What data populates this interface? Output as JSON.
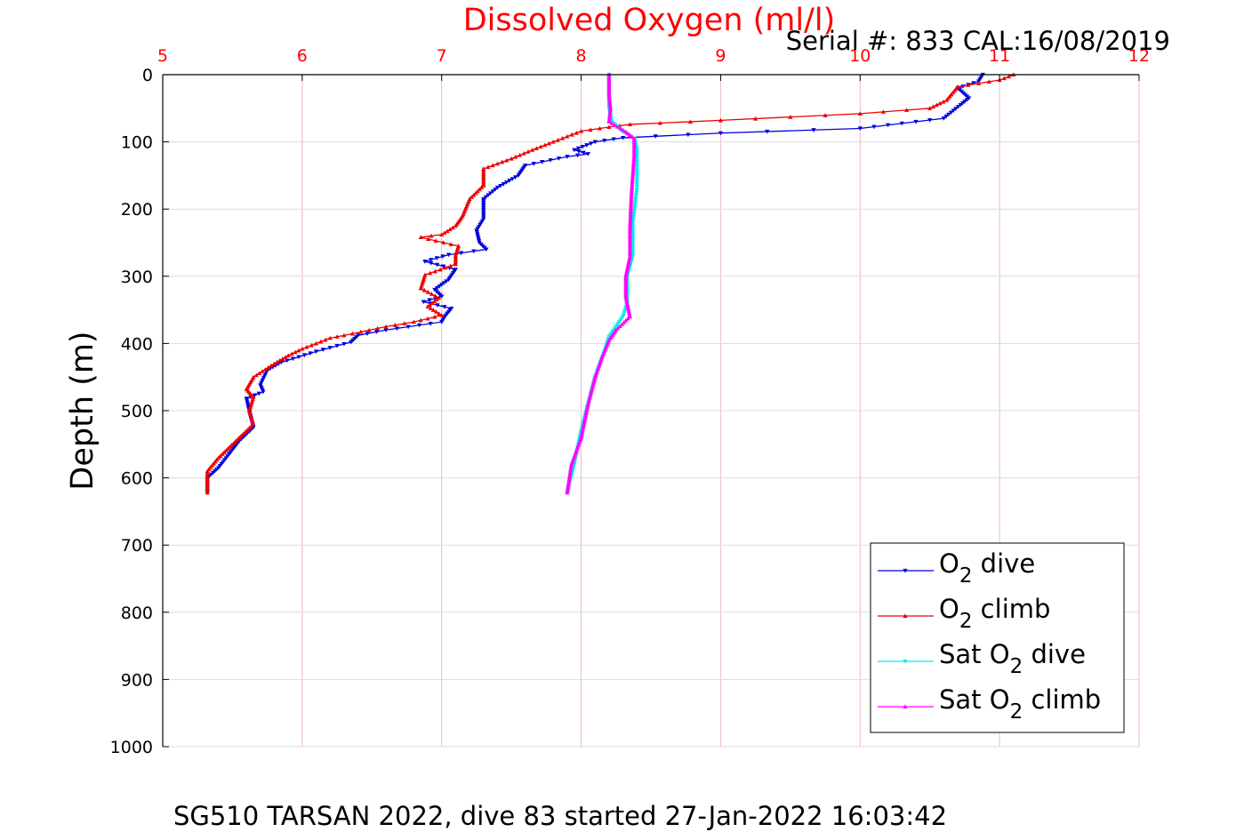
{
  "chart_data": {
    "type": "line",
    "title": "Dissolved Oxygen (ml/l)",
    "subtitle": "Serial #: 833  CAL:16/08/2019",
    "caption": "SG510 TARSAN 2022, dive 83 started 27-Jan-2022 16:03:42",
    "ylabel": "Depth (m)",
    "xlim": [
      5,
      12
    ],
    "ylim": [
      0,
      1000
    ],
    "y_reversed": true,
    "x_axis_position": "top",
    "xticks": [
      "5",
      "6",
      "7",
      "8",
      "9",
      "10",
      "11",
      "12"
    ],
    "yticks": [
      "0",
      "100",
      "200",
      "300",
      "400",
      "500",
      "600",
      "700",
      "800",
      "900",
      "1000"
    ],
    "grid": true,
    "legend_position": "lower-right",
    "colors": {
      "title": "#ff0000",
      "xtick": "#ff0000",
      "grid": "#f2b6c4",
      "axis": "#000000"
    },
    "series": [
      {
        "name": "O2 dive",
        "legend_main": "O",
        "legend_sub": "2",
        "legend_tail": " dive",
        "color": "#0000dd",
        "marker": "triangle-down",
        "points": [
          [
            10.88,
            0
          ],
          [
            10.85,
            10
          ],
          [
            10.7,
            20
          ],
          [
            10.78,
            35
          ],
          [
            10.72,
            45
          ],
          [
            10.6,
            65
          ],
          [
            10.0,
            80
          ],
          [
            9.0,
            87
          ],
          [
            8.3,
            94
          ],
          [
            8.1,
            100
          ],
          [
            7.95,
            112
          ],
          [
            8.05,
            118
          ],
          [
            7.9,
            122
          ],
          [
            7.6,
            135
          ],
          [
            7.55,
            150
          ],
          [
            7.4,
            168
          ],
          [
            7.3,
            185
          ],
          [
            7.3,
            215
          ],
          [
            7.25,
            232
          ],
          [
            7.27,
            250
          ],
          [
            7.32,
            260
          ],
          [
            7.05,
            268
          ],
          [
            6.88,
            278
          ],
          [
            7.1,
            290
          ],
          [
            7.05,
            305
          ],
          [
            6.95,
            320
          ],
          [
            7.0,
            330
          ],
          [
            6.87,
            338
          ],
          [
            7.07,
            348
          ],
          [
            7.03,
            358
          ],
          [
            7.0,
            368
          ],
          [
            6.6,
            380
          ],
          [
            6.4,
            388
          ],
          [
            6.35,
            398
          ],
          [
            6.1,
            412
          ],
          [
            5.85,
            428
          ],
          [
            5.75,
            440
          ],
          [
            5.7,
            462
          ],
          [
            5.72,
            472
          ],
          [
            5.6,
            482
          ],
          [
            5.62,
            500
          ],
          [
            5.65,
            525
          ],
          [
            5.55,
            545
          ],
          [
            5.4,
            585
          ],
          [
            5.32,
            600
          ],
          [
            5.32,
            622
          ]
        ]
      },
      {
        "name": "O2 climb",
        "legend_main": "O",
        "legend_sub": "2",
        "legend_tail": " climb",
        "color": "#ee0000",
        "marker": "triangle-up",
        "points": [
          [
            11.1,
            0
          ],
          [
            11.0,
            8
          ],
          [
            10.7,
            18
          ],
          [
            10.62,
            38
          ],
          [
            10.5,
            50
          ],
          [
            10.0,
            58
          ],
          [
            9.0,
            68
          ],
          [
            8.35,
            74
          ],
          [
            8.2,
            78
          ],
          [
            8.0,
            84
          ],
          [
            7.9,
            92
          ],
          [
            7.8,
            100
          ],
          [
            7.65,
            112
          ],
          [
            7.5,
            125
          ],
          [
            7.3,
            140
          ],
          [
            7.3,
            165
          ],
          [
            7.2,
            185
          ],
          [
            7.15,
            210
          ],
          [
            7.1,
            225
          ],
          [
            7.0,
            238
          ],
          [
            6.85,
            242
          ],
          [
            7.12,
            255
          ],
          [
            7.1,
            268
          ],
          [
            7.1,
            282
          ],
          [
            6.88,
            298
          ],
          [
            6.85,
            318
          ],
          [
            6.98,
            332
          ],
          [
            6.9,
            345
          ],
          [
            7.0,
            358
          ],
          [
            6.8,
            368
          ],
          [
            6.6,
            375
          ],
          [
            6.3,
            388
          ],
          [
            6.2,
            392
          ],
          [
            6.0,
            408
          ],
          [
            5.9,
            418
          ],
          [
            5.8,
            430
          ],
          [
            5.65,
            450
          ],
          [
            5.6,
            468
          ],
          [
            5.65,
            480
          ],
          [
            5.62,
            500
          ],
          [
            5.65,
            520
          ],
          [
            5.55,
            540
          ],
          [
            5.4,
            570
          ],
          [
            5.32,
            590
          ],
          [
            5.32,
            622
          ]
        ]
      },
      {
        "name": "Sat O2 dive",
        "legend_main": "Sat O",
        "legend_sub": "2",
        "legend_tail": " dive",
        "color": "#00eeee",
        "marker": "triangle-down",
        "points": [
          [
            8.2,
            0
          ],
          [
            8.2,
            50
          ],
          [
            8.22,
            70
          ],
          [
            8.3,
            85
          ],
          [
            8.38,
            95
          ],
          [
            8.4,
            110
          ],
          [
            8.4,
            170
          ],
          [
            8.37,
            220
          ],
          [
            8.37,
            270
          ],
          [
            8.33,
            300
          ],
          [
            8.33,
            340
          ],
          [
            8.3,
            360
          ],
          [
            8.2,
            390
          ],
          [
            8.17,
            410
          ],
          [
            8.1,
            450
          ],
          [
            8.05,
            490
          ],
          [
            8.0,
            530
          ],
          [
            7.95,
            580
          ],
          [
            7.9,
            622
          ]
        ]
      },
      {
        "name": "Sat O2 climb",
        "legend_main": "Sat O",
        "legend_sub": "2",
        "legend_tail": " climb",
        "color": "#ff00ff",
        "marker": "triangle-up",
        "points": [
          [
            8.2,
            0
          ],
          [
            8.2,
            30
          ],
          [
            8.21,
            50
          ],
          [
            8.2,
            70
          ],
          [
            8.32,
            85
          ],
          [
            8.38,
            95
          ],
          [
            8.38,
            120
          ],
          [
            8.36,
            180
          ],
          [
            8.35,
            230
          ],
          [
            8.35,
            270
          ],
          [
            8.32,
            300
          ],
          [
            8.32,
            330
          ],
          [
            8.35,
            360
          ],
          [
            8.25,
            380
          ],
          [
            8.2,
            395
          ],
          [
            8.15,
            420
          ],
          [
            8.1,
            450
          ],
          [
            8.05,
            490
          ],
          [
            8.0,
            540
          ],
          [
            7.93,
            580
          ],
          [
            7.9,
            622
          ]
        ]
      }
    ]
  }
}
